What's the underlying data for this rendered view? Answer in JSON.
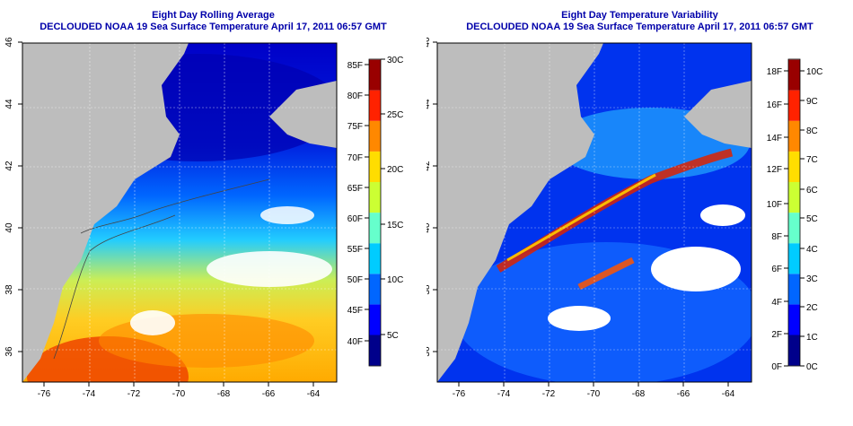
{
  "panels": [
    {
      "title": "Eight Day Rolling Average",
      "subtitle": "DECLOUDED NOAA 19 Sea Surface Temperature April 17, 2011 06:57 GMT",
      "x_ticks": [
        "-76",
        "-74",
        "-72",
        "-70",
        "-68",
        "-66",
        "-64"
      ],
      "y_ticks": [
        "36",
        "38",
        "40",
        "42",
        "44",
        "46"
      ],
      "colorbar": {
        "colors": [
          "#00008b",
          "#0000ff",
          "#0066ff",
          "#00ccff",
          "#66ffcc",
          "#ccff33",
          "#ffdd00",
          "#ff8800",
          "#ff2200",
          "#990000"
        ],
        "left_labels": [
          "40F",
          "45F",
          "50F",
          "55F",
          "60F",
          "65F",
          "70F",
          "75F",
          "80F",
          "85F"
        ],
        "right_labels": [
          "5C",
          "10C",
          "15C",
          "20C",
          "25C",
          "30C"
        ]
      }
    },
    {
      "title": "Eight Day Temperature Variability",
      "subtitle": "DECLOUDED NOAA 19 Sea Surface Temperature April 17, 2011 06:57 GMT",
      "x_ticks": [
        "-76",
        "-74",
        "-72",
        "-70",
        "-68",
        "-66",
        "-64"
      ],
      "y_ticks": [
        "36",
        "38",
        "40",
        "42",
        "44",
        "46"
      ],
      "colorbar": {
        "colors": [
          "#00008b",
          "#0000ff",
          "#0066ff",
          "#00ccff",
          "#66ffcc",
          "#ccff33",
          "#ffdd00",
          "#ff8800",
          "#ff2200",
          "#990000"
        ],
        "left_labels": [
          "0F",
          "2F",
          "4F",
          "6F",
          "8F",
          "10F",
          "12F",
          "14F",
          "16F",
          "18F"
        ],
        "right_labels": [
          "0C",
          "1C",
          "2C",
          "3C",
          "4C",
          "5C",
          "6C",
          "7C",
          "8C",
          "9C",
          "10C"
        ]
      }
    }
  ],
  "colors": {
    "land": "#bdbdbd",
    "title": "#0000aa"
  }
}
